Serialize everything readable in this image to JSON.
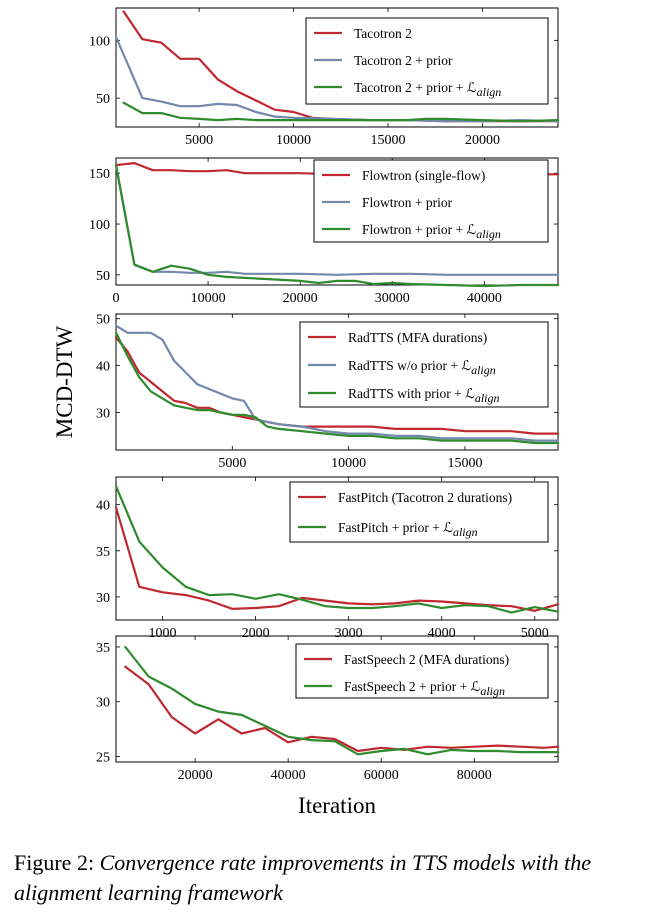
{
  "figure": {
    "ylabel": "MCD-DTW",
    "xlabel": "Iteration",
    "caption_label": "Figure 2:",
    "caption_text": "Convergence rate improvements in TTS models with the alignment learning framework"
  },
  "colors": {
    "red": "#c0282f",
    "blue": "#7388ad",
    "green": "#2e8b2e"
  },
  "chart_data": [
    {
      "type": "line",
      "title": "",
      "xlim": [
        600,
        24000
      ],
      "ylim": [
        25,
        128
      ],
      "xticks": [
        5000,
        10000,
        15000,
        20000
      ],
      "xtick_labels": [
        "5000",
        "10000",
        "15000",
        "20000"
      ],
      "yticks": [
        50,
        100
      ],
      "ytick_labels": [
        "50",
        "100"
      ],
      "legend_position": "top-right",
      "series": [
        {
          "name": "Tacotron 2",
          "color": "red",
          "x": [
            1000,
            2000,
            3000,
            4000,
            5000,
            6000,
            7000,
            8000,
            9000,
            10000,
            11000,
            12000,
            14000,
            16000,
            18000,
            20000,
            22000,
            24000
          ],
          "y": [
            125,
            101,
            98,
            84,
            84,
            66,
            56,
            48,
            40,
            38,
            33,
            32,
            31,
            31,
            30,
            30,
            30,
            30
          ]
        },
        {
          "name": "Tacotron 2 + prior",
          "color": "blue",
          "x": [
            600,
            2000,
            3000,
            4000,
            5000,
            6000,
            7000,
            8000,
            9000,
            10000,
            12000,
            14000,
            16000,
            18000,
            20000,
            22000,
            24000
          ],
          "y": [
            103,
            50,
            47,
            43,
            43,
            45,
            44,
            38,
            34,
            33,
            32,
            31,
            31,
            30,
            30,
            31,
            30
          ]
        },
        {
          "name": "Tacotron 2 + prior + ℒ",
          "name_sub": "align",
          "color": "green",
          "x": [
            1000,
            2000,
            3000,
            4000,
            5000,
            6000,
            7000,
            8000,
            10000,
            12000,
            14000,
            16000,
            17000,
            18000,
            20000,
            22000,
            24000
          ],
          "y": [
            46,
            37,
            37,
            33,
            32,
            31,
            32,
            31,
            31,
            31,
            31,
            31,
            32,
            32,
            31,
            30,
            31
          ]
        }
      ]
    },
    {
      "type": "line",
      "title": "",
      "xlim": [
        0,
        48000
      ],
      "ylim": [
        40,
        165
      ],
      "xticks": [
        0,
        10000,
        20000,
        30000,
        40000
      ],
      "xtick_labels": [
        "0",
        "10000",
        "20000",
        "30000",
        "40000"
      ],
      "yticks": [
        50,
        100,
        150
      ],
      "ytick_labels": [
        "50",
        "100",
        "150"
      ],
      "legend_position": "top-right",
      "series": [
        {
          "name": "Flowtron (single-flow)",
          "color": "red",
          "x": [
            0,
            2000,
            4000,
            6000,
            8000,
            10000,
            12000,
            14000,
            16000,
            20000,
            24000,
            28000,
            32000,
            36000,
            40000,
            44000,
            48000
          ],
          "y": [
            158,
            160,
            153,
            153,
            152,
            152,
            153,
            150,
            150,
            150,
            149,
            149,
            149,
            149,
            149,
            149,
            149
          ]
        },
        {
          "name": "Flowtron + prior",
          "color": "blue",
          "x": [
            0,
            2000,
            4000,
            6000,
            8000,
            10000,
            12000,
            14000,
            16000,
            20000,
            24000,
            28000,
            32000,
            36000,
            40000,
            44000,
            48000
          ],
          "y": [
            158,
            60,
            53,
            53,
            52,
            52,
            53,
            51,
            51,
            51,
            50,
            51,
            51,
            50,
            50,
            50,
            50
          ]
        },
        {
          "name": "Flowtron + prior + ℒ",
          "name_sub": "align",
          "color": "green",
          "x": [
            0,
            2000,
            4000,
            6000,
            8000,
            10000,
            12000,
            14000,
            16000,
            18000,
            20000,
            22000,
            24000,
            26000,
            28000,
            30000,
            32000,
            36000,
            40000,
            44000,
            48000
          ],
          "y": [
            158,
            60,
            53,
            59,
            56,
            50,
            48,
            47,
            46,
            45,
            44,
            42,
            44,
            44,
            41,
            42,
            41,
            40,
            39,
            40,
            40
          ]
        }
      ]
    },
    {
      "type": "line",
      "title": "",
      "xlim": [
        0,
        19000
      ],
      "ylim": [
        22,
        51
      ],
      "xticks": [
        5000,
        10000,
        15000
      ],
      "xtick_labels": [
        "5000",
        "10000",
        "15000"
      ],
      "yticks": [
        30,
        40,
        50
      ],
      "ytick_labels": [
        "30",
        "40",
        "50"
      ],
      "legend_position": "top-right",
      "series": [
        {
          "name": "RadTTS (MFA durations)",
          "color": "red",
          "x": [
            0,
            500,
            1000,
            1500,
            2000,
            2500,
            3000,
            3500,
            4000,
            4500,
            5000,
            5500,
            6000,
            6500,
            7000,
            8000,
            9000,
            10000,
            11000,
            12000,
            13000,
            14000,
            15000,
            16000,
            17000,
            18000,
            19000
          ],
          "y": [
            46,
            43,
            38.5,
            36.5,
            34.5,
            32.5,
            32,
            31,
            31,
            30,
            29.5,
            29,
            28.5,
            28,
            27.5,
            27,
            27,
            27,
            27,
            26.5,
            26.5,
            26.5,
            26,
            26,
            26,
            25.5,
            25.5
          ]
        },
        {
          "name": "RadTTS w/o prior + ℒ",
          "name_sub": "align",
          "color": "blue",
          "x": [
            0,
            500,
            1000,
            1500,
            2000,
            2500,
            3000,
            3500,
            4000,
            4500,
            5000,
            5500,
            6000,
            6500,
            7000,
            8000,
            9000,
            10000,
            11000,
            12000,
            13000,
            14000,
            15000,
            16000,
            17000,
            18000,
            19000
          ],
          "y": [
            48.5,
            47,
            47,
            47,
            45.5,
            41,
            38.5,
            36,
            35,
            34,
            33,
            32.5,
            28.5,
            28,
            27.5,
            27,
            26,
            25.5,
            25.5,
            25,
            25,
            24.5,
            24.5,
            24.5,
            24.5,
            24,
            24
          ]
        },
        {
          "name": "RadTTS with prior + ℒ",
          "name_sub": "align",
          "color": "green",
          "x": [
            0,
            500,
            1000,
            1500,
            2000,
            2500,
            3000,
            3500,
            4000,
            4500,
            5000,
            5500,
            6000,
            6500,
            7000,
            8000,
            9000,
            10000,
            11000,
            12000,
            13000,
            14000,
            15000,
            16000,
            17000,
            18000,
            19000
          ],
          "y": [
            47,
            42,
            37.5,
            34.5,
            33,
            31.5,
            31,
            30.5,
            30.5,
            30,
            29.5,
            29.5,
            29,
            27,
            26.5,
            26,
            25.5,
            25,
            25,
            24.5,
            24.5,
            24,
            24,
            24,
            24,
            23.5,
            23.5
          ]
        }
      ]
    },
    {
      "type": "line",
      "title": "",
      "xlim": [
        500,
        5250
      ],
      "ylim": [
        27.5,
        43
      ],
      "xticks": [
        1000,
        2000,
        3000,
        4000,
        5000
      ],
      "xtick_labels": [
        "1000",
        "2000",
        "3000",
        "4000",
        "5000"
      ],
      "yticks": [
        30,
        35,
        40
      ],
      "ytick_labels": [
        "30",
        "35",
        "40"
      ],
      "legend_position": "top-right",
      "series": [
        {
          "name": "FastPitch (Tacotron 2 durations)",
          "color": "red",
          "x": [
            500,
            750,
            1000,
            1250,
            1500,
            1750,
            2000,
            2250,
            2500,
            2750,
            3000,
            3250,
            3500,
            3750,
            4000,
            4250,
            4500,
            4750,
            5000,
            5250
          ],
          "y": [
            39.7,
            31.1,
            30.5,
            30.2,
            29.6,
            28.7,
            28.8,
            29.0,
            29.9,
            29.6,
            29.3,
            29.2,
            29.3,
            29.6,
            29.5,
            29.3,
            29.1,
            29.0,
            28.5,
            29.2
          ]
        },
        {
          "name": "FastPitch + prior + ℒ",
          "name_sub": "align",
          "color": "green",
          "x": [
            500,
            750,
            1000,
            1250,
            1500,
            1750,
            2000,
            2250,
            2500,
            2750,
            3000,
            3250,
            3500,
            3750,
            4000,
            4250,
            4500,
            4750,
            5000,
            5250
          ],
          "y": [
            42.0,
            36.0,
            33.2,
            31.1,
            30.2,
            30.3,
            29.8,
            30.3,
            29.7,
            29.0,
            28.8,
            28.8,
            29.0,
            29.3,
            28.8,
            29.1,
            29.0,
            28.3,
            28.9,
            28.4
          ]
        }
      ]
    },
    {
      "type": "line",
      "title": "",
      "xlim": [
        3000,
        98000
      ],
      "ylim": [
        24.5,
        36
      ],
      "xticks": [
        20000,
        40000,
        60000,
        80000
      ],
      "xtick_labels": [
        "20000",
        "40000",
        "60000",
        "80000"
      ],
      "yticks": [
        25,
        30,
        35
      ],
      "ytick_labels": [
        "25",
        "30",
        "35"
      ],
      "legend_position": "top-right",
      "series": [
        {
          "name": "FastSpeech 2 (MFA durations)",
          "color": "red",
          "x": [
            5000,
            10000,
            15000,
            20000,
            25000,
            30000,
            35000,
            40000,
            45000,
            50000,
            55000,
            60000,
            65000,
            70000,
            75000,
            80000,
            85000,
            90000,
            95000,
            98000
          ],
          "y": [
            33.2,
            31.6,
            28.6,
            27.1,
            28.4,
            27.1,
            27.6,
            26.3,
            26.8,
            26.6,
            25.5,
            25.8,
            25.6,
            25.9,
            25.8,
            25.9,
            26.0,
            25.9,
            25.8,
            25.9
          ]
        },
        {
          "name": "FastSpeech 2 + prior + ℒ",
          "name_sub": "align",
          "color": "green",
          "x": [
            5000,
            10000,
            15000,
            20000,
            25000,
            30000,
            35000,
            40000,
            45000,
            50000,
            55000,
            60000,
            65000,
            70000,
            75000,
            80000,
            85000,
            90000,
            95000,
            98000
          ],
          "y": [
            35.0,
            32.3,
            31.2,
            29.8,
            29.1,
            28.8,
            27.8,
            26.8,
            26.5,
            26.4,
            25.2,
            25.5,
            25.7,
            25.2,
            25.6,
            25.5,
            25.5,
            25.4,
            25.4,
            25.4
          ]
        }
      ]
    }
  ]
}
